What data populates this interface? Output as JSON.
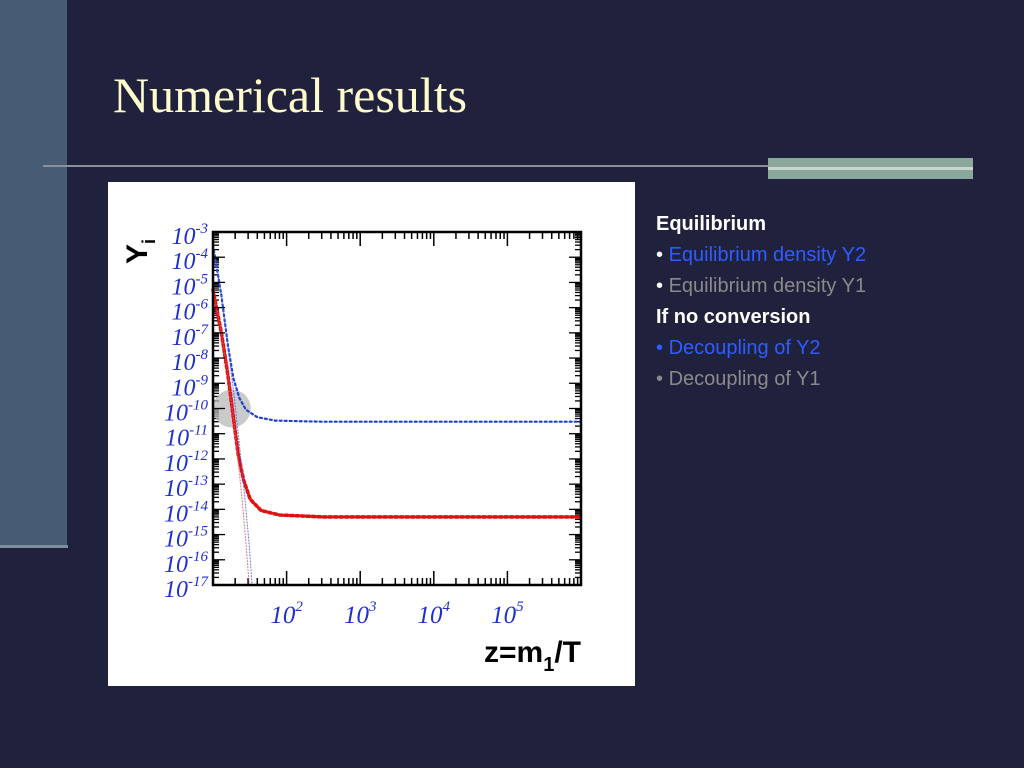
{
  "slide": {
    "title": "Numerical results"
  },
  "legend": {
    "heading_equilibrium": "Equilibrium",
    "eq_y2": "Equilibrium density Y2",
    "eq_y1": "Equilibrium density Y1",
    "heading_no_conversion": "If no conversion",
    "dec_y2": "Decoupling of Y2",
    "dec_y1": "Decoupling of Y1",
    "bullet": "•",
    "color_y2": "#2f5cff",
    "color_y1": "#8a8a8a"
  },
  "chart_data": {
    "type": "line",
    "ylabel": "Y",
    "ylabel_subscript": "i",
    "xlabel": "z=m",
    "xlabel_subscript": "1",
    "xlabel_suffix": "/T",
    "x_scale": "log",
    "y_scale": "log",
    "xlim": [
      10,
      1000000
    ],
    "ylim": [
      1e-17,
      0.001
    ],
    "y_ticks": [
      {
        "base": "10",
        "exp": "-3",
        "value": 0.001
      },
      {
        "base": "10",
        "exp": "-4",
        "value": 0.0001
      },
      {
        "base": "10",
        "exp": "-5",
        "value": 1e-05
      },
      {
        "base": "10",
        "exp": "-6",
        "value": 1e-06
      },
      {
        "base": "10",
        "exp": "-7",
        "value": 1e-07
      },
      {
        "base": "10",
        "exp": "-8",
        "value": 1e-08
      },
      {
        "base": "10",
        "exp": "-9",
        "value": 1e-09
      },
      {
        "base": "10",
        "exp": "-10",
        "value": 1e-10
      },
      {
        "base": "10",
        "exp": "-11",
        "value": 1e-11
      },
      {
        "base": "10",
        "exp": "-12",
        "value": 1e-12
      },
      {
        "base": "10",
        "exp": "-13",
        "value": 1e-13
      },
      {
        "base": "10",
        "exp": "-14",
        "value": 1e-14
      },
      {
        "base": "10",
        "exp": "-15",
        "value": 1e-15
      },
      {
        "base": "10",
        "exp": "-16",
        "value": 1e-16
      },
      {
        "base": "10",
        "exp": "-17",
        "value": 1e-17
      }
    ],
    "x_ticks": [
      {
        "base": "10",
        "exp": "2",
        "value": 100
      },
      {
        "base": "10",
        "exp": "3",
        "value": 1000
      },
      {
        "base": "10",
        "exp": "4",
        "value": 10000
      },
      {
        "base": "10",
        "exp": "5",
        "value": 100000
      }
    ],
    "series": [
      {
        "key": "dec_y2",
        "color": "#1f3fd0",
        "style": "dotted-thin",
        "points": [
          [
            10,
            0.0003
          ],
          [
            13,
            3e-06
          ],
          [
            16,
            3e-08
          ],
          [
            19,
            1.5e-09
          ],
          [
            23,
            2.5e-10
          ],
          [
            28,
            9e-11
          ],
          [
            40,
            4.5e-11
          ],
          [
            70,
            3.3e-11
          ],
          [
            300,
            3e-11
          ],
          [
            3000,
            3e-11
          ],
          [
            1000000,
            3e-11
          ]
        ]
      },
      {
        "key": "dec_y1",
        "color": "#e01010",
        "style": "dotted-thick",
        "points": [
          [
            10,
            5e-06
          ],
          [
            13,
            1e-07
          ],
          [
            16,
            2e-09
          ],
          [
            19,
            4e-11
          ],
          [
            22,
            1.5e-12
          ],
          [
            26,
            1.5e-13
          ],
          [
            32,
            2.5e-14
          ],
          [
            45,
            9e-15
          ],
          [
            80,
            6e-15
          ],
          [
            300,
            5e-15
          ],
          [
            1000000,
            5e-15
          ]
        ]
      },
      {
        "key": "eq_y2",
        "color": "#5060f0",
        "style": "dotted-faint",
        "points": [
          [
            10,
            0.0003
          ],
          [
            13,
            3e-06
          ],
          [
            16,
            3e-08
          ],
          [
            19,
            5e-10
          ],
          [
            22,
            1e-11
          ],
          [
            25,
            3e-13
          ],
          [
            28,
            1e-14
          ],
          [
            31,
            4e-16
          ],
          [
            34,
            1e-17
          ]
        ]
      },
      {
        "key": "eq_y1",
        "color": "#d06060",
        "style": "dotted-faint",
        "points": [
          [
            10,
            5e-06
          ],
          [
            13,
            1e-07
          ],
          [
            16,
            2e-09
          ],
          [
            19,
            4e-11
          ],
          [
            22,
            8e-13
          ],
          [
            25,
            2e-14
          ],
          [
            28,
            5e-16
          ],
          [
            31,
            1e-17
          ]
        ]
      }
    ],
    "annotation": {
      "type": "circle",
      "x": 18,
      "y": 1e-10,
      "color": "#b8b8b8"
    }
  }
}
